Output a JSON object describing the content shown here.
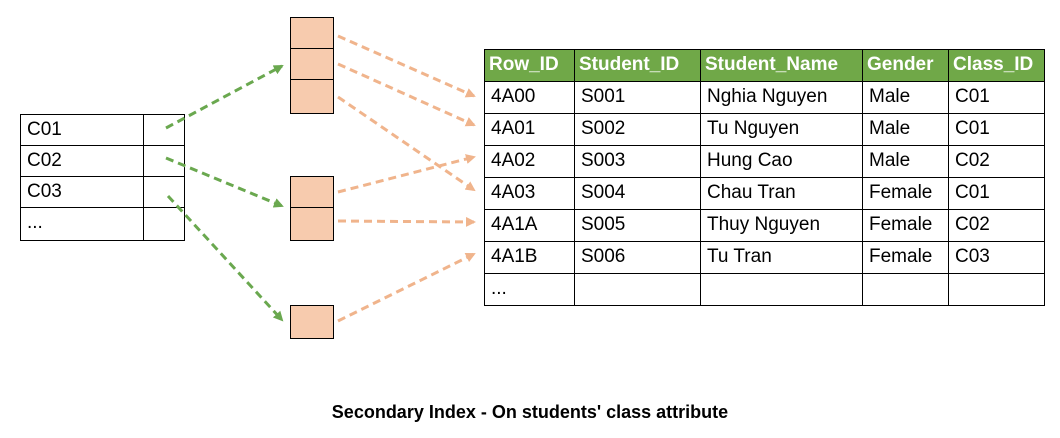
{
  "index_keys": [
    "C01",
    "C02",
    "C03",
    "..."
  ],
  "table": {
    "headers": [
      "Row_ID",
      "Student_ID",
      "Student_Name",
      "Gender",
      "Class_ID"
    ],
    "rows": [
      [
        "4A00",
        "S001",
        "Nghia Nguyen",
        "Male",
        "C01"
      ],
      [
        "4A01",
        "S002",
        "Tu Nguyen",
        "Male",
        "C01"
      ],
      [
        "4A02",
        "S003",
        "Hung Cao",
        "Male",
        "C02"
      ],
      [
        "4A03",
        "S004",
        "Chau Tran",
        "Female",
        "C01"
      ],
      [
        "4A1A",
        "S005",
        "Thuy Nguyen",
        "Female",
        "C02"
      ],
      [
        "4A1B",
        "S006",
        "Tu Tran",
        "Female",
        "C03"
      ],
      [
        "...",
        "",
        "",
        "",
        ""
      ]
    ]
  },
  "caption": "Secondary Index - On students' class attribute",
  "colors": {
    "header_fill": "#70a848",
    "bucket_fill": "#f7cbae",
    "index_arrow": "#6aa84f",
    "pointer_arrow": "#f0b48c"
  }
}
